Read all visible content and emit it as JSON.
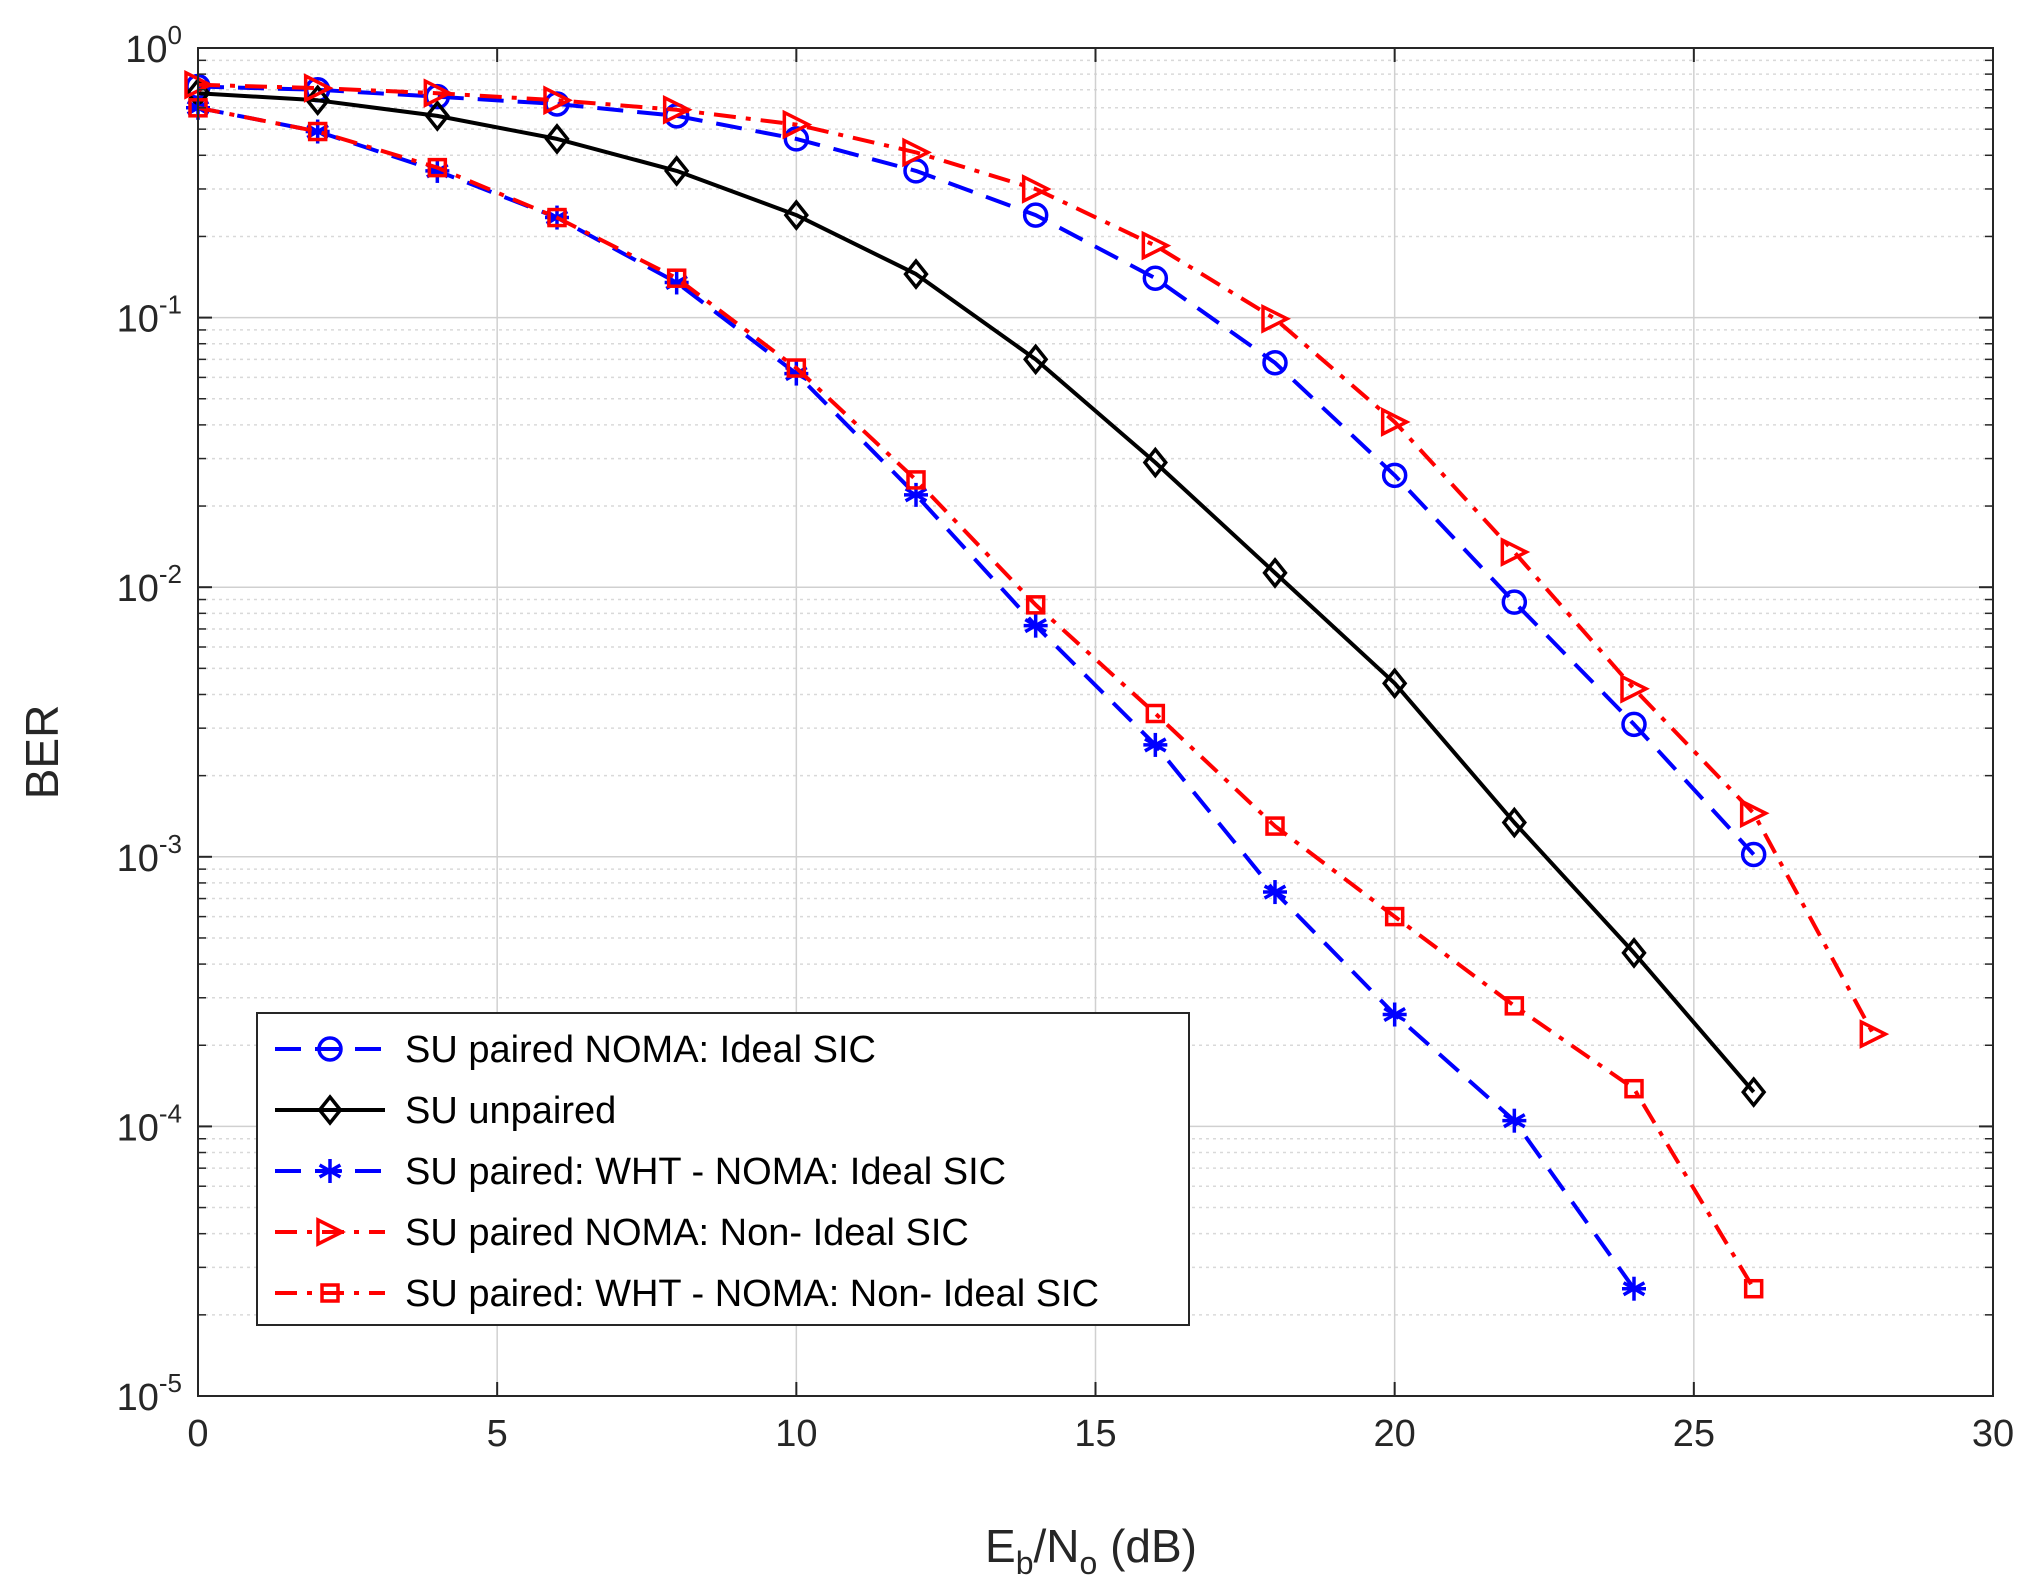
{
  "chart_data": {
    "type": "line",
    "title": "",
    "xlabel": {
      "base": "E",
      "sub1": "b",
      "mid": "/N",
      "sub2": "o",
      "tail": " (dB)"
    },
    "ylabel": "BER",
    "xlim": [
      0,
      30
    ],
    "ylim": [
      1e-05,
      1
    ],
    "yscale": "log",
    "grid": true,
    "x_ticks": [
      "0",
      "5",
      "10",
      "15",
      "20",
      "25",
      "30"
    ],
    "y_ticks": [
      {
        "base": "10",
        "exp": "0"
      },
      {
        "base": "10",
        "exp": "-1"
      },
      {
        "base": "10",
        "exp": "-2"
      },
      {
        "base": "10",
        "exp": "-3"
      },
      {
        "base": "10",
        "exp": "-4"
      },
      {
        "base": "10",
        "exp": "-5"
      }
    ],
    "legend_position": "lower-left",
    "series": [
      {
        "name": "SU paired NOMA: Ideal SIC",
        "color": "#0000ff",
        "line_style": "dashed",
        "marker": "circle",
        "x": [
          0,
          2,
          4,
          6,
          8,
          10,
          12,
          14,
          16,
          18,
          20,
          22,
          24,
          26
        ],
        "y": [
          0.72,
          0.7,
          0.66,
          0.62,
          0.56,
          0.46,
          0.35,
          0.24,
          0.14,
          0.068,
          0.026,
          0.0088,
          0.0031,
          0.00102
        ]
      },
      {
        "name": "SU unpaired",
        "color": "#000000",
        "line_style": "solid",
        "marker": "diamond",
        "x": [
          0,
          2,
          4,
          6,
          8,
          10,
          12,
          14,
          16,
          18,
          20,
          22,
          24,
          26
        ],
        "y": [
          0.68,
          0.64,
          0.56,
          0.46,
          0.35,
          0.24,
          0.145,
          0.07,
          0.029,
          0.0113,
          0.0044,
          0.00134,
          0.00044,
          0.000134
        ]
      },
      {
        "name": "SU paired: WHT - NOMA: Ideal SIC",
        "color": "#0000ff",
        "line_style": "dashed",
        "marker": "asterisk",
        "x": [
          0,
          2,
          4,
          6,
          8,
          10,
          12,
          14,
          16,
          18,
          20,
          22,
          24
        ],
        "y": [
          0.6,
          0.49,
          0.35,
          0.235,
          0.135,
          0.062,
          0.022,
          0.0072,
          0.0026,
          0.00074,
          0.00026,
          0.000105,
          2.5e-05
        ]
      },
      {
        "name": "SU paired NOMA: Non- Ideal SIC",
        "color": "#ff0000",
        "line_style": "dashdot",
        "marker": "triangle-right",
        "x": [
          0,
          2,
          4,
          6,
          8,
          10,
          12,
          14,
          16,
          18,
          20,
          22,
          24,
          26,
          28
        ],
        "y": [
          0.73,
          0.71,
          0.68,
          0.64,
          0.59,
          0.52,
          0.41,
          0.3,
          0.185,
          0.099,
          0.041,
          0.0135,
          0.0042,
          0.00145,
          0.00022
        ]
      },
      {
        "name": "SU paired: WHT - NOMA: Non- Ideal SIC",
        "color": "#ff0000",
        "line_style": "dashdot",
        "marker": "square",
        "x": [
          0,
          2,
          4,
          6,
          8,
          10,
          12,
          14,
          16,
          18,
          20,
          22,
          24,
          26
        ],
        "y": [
          0.6,
          0.49,
          0.36,
          0.235,
          0.14,
          0.065,
          0.025,
          0.0086,
          0.0034,
          0.0013,
          0.0006,
          0.00028,
          0.000138,
          2.5e-05
        ]
      }
    ]
  }
}
